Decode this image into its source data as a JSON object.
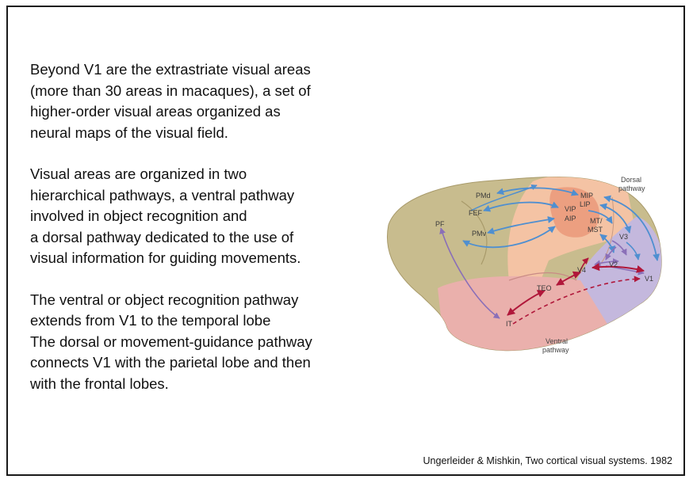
{
  "paragraphs": [
    [
      "Beyond V1 are the extrastriate visual areas",
      "(more than 30 areas in macaques), a set of",
      "higher-order visual areas organized as",
      "neural maps of the visual field."
    ],
    [
      "Visual areas are organized in two",
      "hierarchical pathways, a ventral pathway",
      "involved in object recognition and",
      "a dorsal pathway dedicated to the use of",
      "visual information for guiding movements."
    ],
    [
      "The ventral or object recognition pathway",
      "extends from V1 to the temporal lobe",
      "The dorsal or movement-guidance pathway",
      "connects V1 with the parietal lobe and then",
      "with the frontal lobes."
    ]
  ],
  "figure": {
    "pathway_labels": {
      "dorsal": [
        "Dorsal",
        "pathway"
      ],
      "ventral": [
        "Ventral",
        "pathway"
      ]
    },
    "areas": {
      "pmd": "PMd",
      "fef": "FEF",
      "pf": "PF",
      "pmv": "PMv",
      "mip": "MIP",
      "lip": "LIP",
      "vip": "VIP",
      "aip": "AIP",
      "mt": "MT/",
      "mst": "MST",
      "v3": "V3",
      "v2": "V2",
      "v4": "V4",
      "v1": "V1",
      "teo": "TEO",
      "it": "IT"
    },
    "colors": {
      "frontal": "#c8bc8e",
      "parietal": "#f4c3a4",
      "parietal_core": "#ec9f80",
      "occipital": "#c4b8dd",
      "temporal": "#eab0ac",
      "dorsal_arrow": "#4f8fd0",
      "ventral_arrow": "#b0173a",
      "pf_arrow": "#8a6fb8"
    }
  },
  "citation": "Ungerleider & Mishkin, Two cortical visual systems. 1982"
}
